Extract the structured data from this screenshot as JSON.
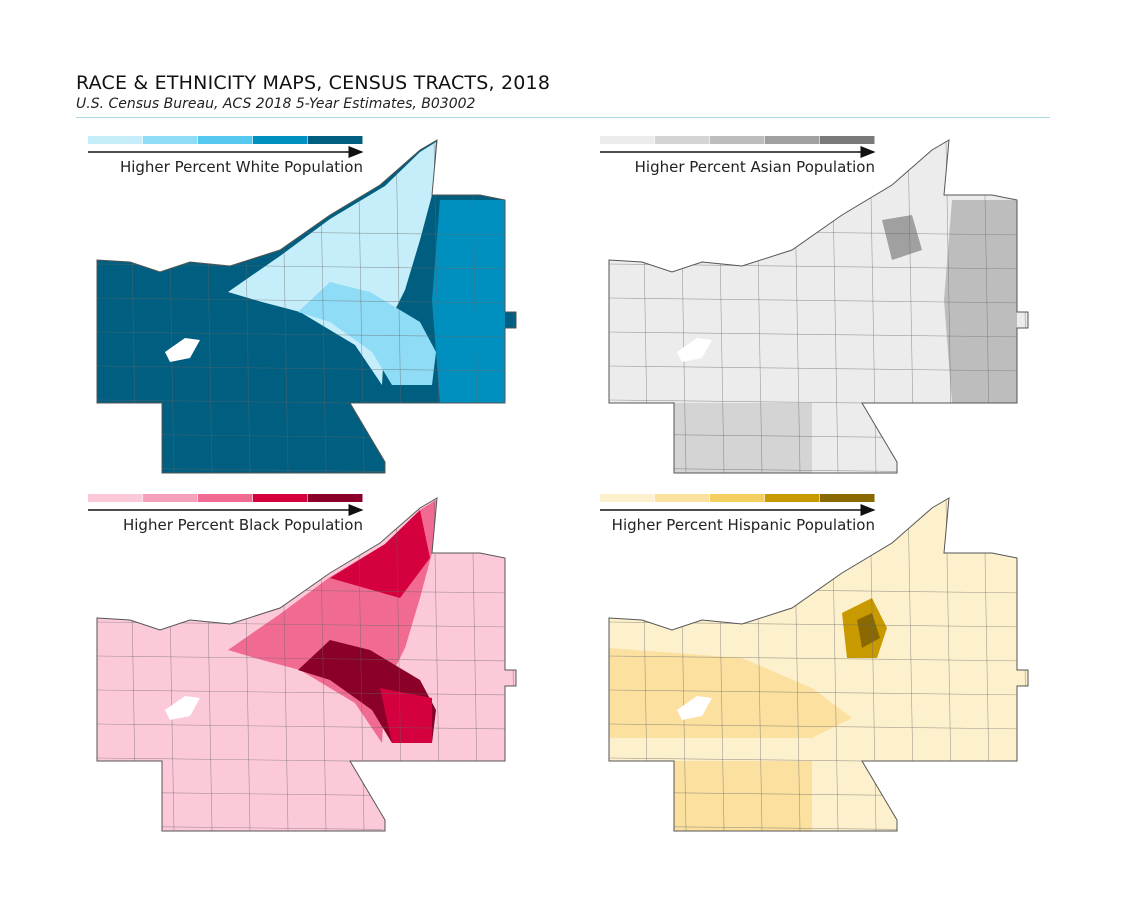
{
  "header": {
    "title": "RACE & ETHNICITY MAPS, CENSUS TRACTS, 2018",
    "subtitle": "U.S. Census Bureau, ACS 2018 5-Year Estimates, B03002"
  },
  "maps": [
    {
      "id": "white",
      "legend_label": "Higher Percent White Population",
      "colors": [
        "#c6eefa",
        "#8fdcf6",
        "#55c8f0",
        "#0090c0",
        "#005f80"
      ]
    },
    {
      "id": "asian",
      "legend_label": "Higher Percent Asian Population",
      "colors": [
        "#ececec",
        "#d4d4d4",
        "#bdbdbd",
        "#a0a0a0",
        "#7a7a7a"
      ]
    },
    {
      "id": "black",
      "legend_label": "Higher Percent Black Population",
      "colors": [
        "#fcc9d9",
        "#f7a0bb",
        "#f06a92",
        "#d5003e",
        "#8a0028"
      ]
    },
    {
      "id": "hispanic",
      "legend_label": "Higher Percent Hispanic Population",
      "colors": [
        "#fdf0cc",
        "#fbe0a0",
        "#f5cf60",
        "#c99a00",
        "#8a6a00"
      ]
    }
  ]
}
